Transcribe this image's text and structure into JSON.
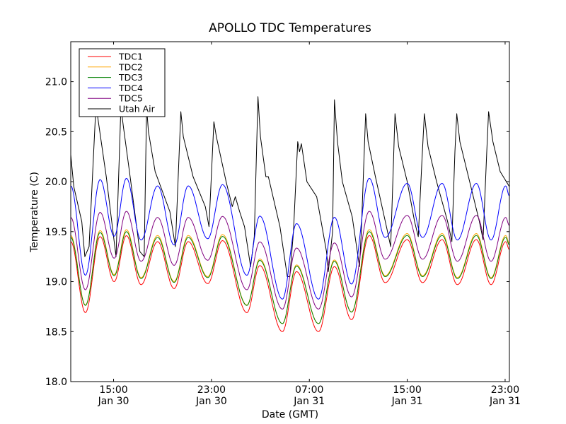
{
  "chart_data": {
    "type": "line",
    "title": "APOLLO TDC Temperatures",
    "xlabel": "Date (GMT)",
    "ylabel": "Temperature (C)",
    "x_unit": "hours since Jan 30 00:00 GMT",
    "xlim": [
      11.5,
      47.35
    ],
    "ylim": [
      18.0,
      21.4
    ],
    "yticks": [
      18.0,
      18.5,
      19.0,
      19.5,
      20.0,
      20.5,
      21.0
    ],
    "ytick_labels": [
      "18.0",
      "18.5",
      "19.0",
      "19.5",
      "20.0",
      "20.5",
      "21.0"
    ],
    "xticks": [
      15,
      23,
      31,
      39,
      47
    ],
    "xtick_labels": [
      [
        "15:00",
        "Jan 30"
      ],
      [
        "23:00",
        "Jan 30"
      ],
      [
        "07:00",
        "Jan 31"
      ],
      [
        "15:00",
        "Jan 31"
      ],
      [
        "23:00",
        "Jan 31"
      ]
    ],
    "grid": false,
    "legend_position": "top-left",
    "base_profile": {
      "description": "TDC1 extrema (hours, C); other TDCs follow with offsets",
      "points": [
        [
          11.5,
          19.4
        ],
        [
          12.7,
          18.69
        ],
        [
          13.9,
          19.45
        ],
        [
          15.05,
          19.0
        ],
        [
          16.05,
          19.46
        ],
        [
          17.25,
          18.97
        ],
        [
          18.6,
          19.4
        ],
        [
          19.95,
          18.93
        ],
        [
          21.1,
          19.4
        ],
        [
          22.7,
          18.98
        ],
        [
          23.9,
          19.41
        ],
        [
          25.9,
          18.69
        ],
        [
          26.95,
          19.16
        ],
        [
          28.8,
          18.5
        ],
        [
          29.95,
          19.1
        ],
        [
          31.75,
          18.5
        ],
        [
          33.05,
          19.15
        ],
        [
          34.45,
          18.62
        ],
        [
          35.9,
          19.46
        ],
        [
          37.2,
          18.99
        ],
        [
          39.0,
          19.42
        ],
        [
          40.25,
          18.99
        ],
        [
          41.85,
          19.42
        ],
        [
          43.1,
          18.97
        ],
        [
          44.65,
          19.42
        ],
        [
          45.85,
          18.97
        ],
        [
          47.05,
          19.4
        ],
        [
          47.35,
          19.32
        ]
      ]
    },
    "series": [
      {
        "name": "TDC1",
        "color": "#ff0000",
        "offset_peak": 0.0,
        "offset_trough": 0.0
      },
      {
        "name": "TDC2",
        "color": "#ffa500",
        "offset_peak": 0.06,
        "offset_trough": 0.08
      },
      {
        "name": "TDC3",
        "color": "#008000",
        "offset_peak": 0.04,
        "offset_trough": 0.08
      },
      {
        "name": "TDC4",
        "color": "#0000ff",
        "offset_peak": 0.55,
        "offset_trough": 0.35
      },
      {
        "name": "TDC5",
        "color": "#800080",
        "offset_peak": 0.22,
        "offset_trough": 0.25
      },
      {
        "name": "Utah Air",
        "color": "#000000",
        "points": [
          [
            11.5,
            20.27
          ],
          [
            11.75,
            19.95
          ],
          [
            12.4,
            19.6
          ],
          [
            12.65,
            19.25
          ],
          [
            13.0,
            19.35
          ],
          [
            13.55,
            20.75
          ],
          [
            13.7,
            20.65
          ],
          [
            14.4,
            20.05
          ],
          [
            14.9,
            19.55
          ],
          [
            15.2,
            19.25
          ],
          [
            15.6,
            20.75
          ],
          [
            15.8,
            20.55
          ],
          [
            16.3,
            20.1
          ],
          [
            17.15,
            19.3
          ],
          [
            17.5,
            19.25
          ],
          [
            17.7,
            20.75
          ],
          [
            17.85,
            20.5
          ],
          [
            18.4,
            20.1
          ],
          [
            19.6,
            19.7
          ],
          [
            20.05,
            19.35
          ],
          [
            20.5,
            20.7
          ],
          [
            20.7,
            20.45
          ],
          [
            21.5,
            20.05
          ],
          [
            22.5,
            19.75
          ],
          [
            22.8,
            19.55
          ],
          [
            23.2,
            20.6
          ],
          [
            23.4,
            20.45
          ],
          [
            24.2,
            20.0
          ],
          [
            24.7,
            19.75
          ],
          [
            24.95,
            19.85
          ],
          [
            25.3,
            19.7
          ],
          [
            25.7,
            19.55
          ],
          [
            26.2,
            19.15
          ],
          [
            26.5,
            19.45
          ],
          [
            26.8,
            20.85
          ],
          [
            27.0,
            20.45
          ],
          [
            27.45,
            20.05
          ],
          [
            27.65,
            20.05
          ],
          [
            28.6,
            19.55
          ],
          [
            29.2,
            19.05
          ],
          [
            29.4,
            19.05
          ],
          [
            29.7,
            19.5
          ],
          [
            30.05,
            20.4
          ],
          [
            30.2,
            20.3
          ],
          [
            30.35,
            20.38
          ],
          [
            30.8,
            20.0
          ],
          [
            31.6,
            19.85
          ],
          [
            32.4,
            19.3
          ],
          [
            32.55,
            19.1
          ],
          [
            32.9,
            19.5
          ],
          [
            33.05,
            20.82
          ],
          [
            33.3,
            20.4
          ],
          [
            33.7,
            20.0
          ],
          [
            34.5,
            19.65
          ],
          [
            35.1,
            19.15
          ],
          [
            35.25,
            19.5
          ],
          [
            35.6,
            20.68
          ],
          [
            35.8,
            20.4
          ],
          [
            36.4,
            20.05
          ],
          [
            37.3,
            19.55
          ],
          [
            37.65,
            19.35
          ],
          [
            37.85,
            20.1
          ],
          [
            38.0,
            20.68
          ],
          [
            38.3,
            20.35
          ],
          [
            39.0,
            20.0
          ],
          [
            39.6,
            19.6
          ],
          [
            39.9,
            19.45
          ],
          [
            40.2,
            20.2
          ],
          [
            40.4,
            20.68
          ],
          [
            40.7,
            20.35
          ],
          [
            41.4,
            20.0
          ],
          [
            42.3,
            19.6
          ],
          [
            42.65,
            19.4
          ],
          [
            42.9,
            20.3
          ],
          [
            43.05,
            20.68
          ],
          [
            43.3,
            20.4
          ],
          [
            44.0,
            20.05
          ],
          [
            44.9,
            19.6
          ],
          [
            45.2,
            19.42
          ],
          [
            45.5,
            20.3
          ],
          [
            45.65,
            20.7
          ],
          [
            46.0,
            20.4
          ],
          [
            46.6,
            20.1
          ],
          [
            47.35,
            19.95
          ]
        ]
      }
    ]
  }
}
